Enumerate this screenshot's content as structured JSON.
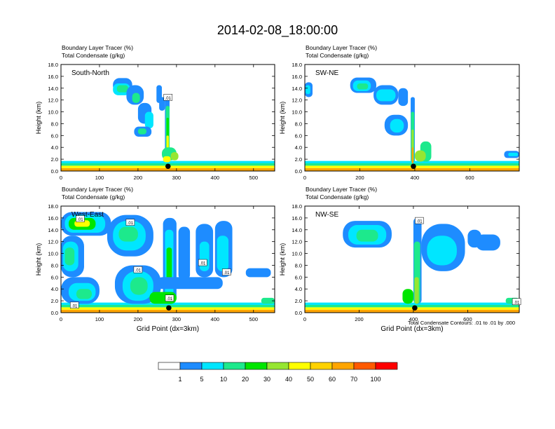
{
  "figure": {
    "title": "2014-02-08_18:00:00",
    "note": "Total Condensate Contours: .01 to .01 by .000"
  },
  "colorbar": {
    "colors": [
      "#ffffff",
      "#1e8cff",
      "#00e6ff",
      "#1de98c",
      "#00e600",
      "#96e632",
      "#ffff00",
      "#ffd200",
      "#ffa500",
      "#ff5a00",
      "#ff0000"
    ],
    "labels": [
      "1",
      "5",
      "10",
      "20",
      "30",
      "40",
      "50",
      "60",
      "70",
      "100"
    ]
  },
  "chart_data": [
    {
      "type": "heatmap",
      "panel": "South-North",
      "subtitle_line1": "Boundary Layer Tracer   (%)",
      "subtitle_line2": "Total Condensate   (g/kg)",
      "ylabel": "Height (km)",
      "xlabel": "",
      "xlim": [
        0,
        555
      ],
      "ylim": [
        0,
        18
      ],
      "xticks": [
        "0",
        "100",
        "200",
        "300",
        "400",
        "500"
      ],
      "xtick_values": [
        0,
        100,
        200,
        300,
        400,
        500
      ],
      "yticks": [
        "0.0",
        "2.0",
        "4.0",
        "6.0",
        "8.0",
        "10.0",
        "12.0",
        "14.0",
        "16.0",
        "18.0"
      ],
      "contour_labels": [
        {
          "text": ".01",
          "x": 278,
          "y": 12.4
        }
      ],
      "marker": {
        "x": 278,
        "y": 0.8
      },
      "blobs": [
        {
          "x": [
            0,
            555
          ],
          "y": [
            0,
            0.5
          ],
          "c": 8
        },
        {
          "x": [
            0,
            555
          ],
          "y": [
            0.5,
            0.9
          ],
          "c": 6
        },
        {
          "x": [
            0,
            555
          ],
          "y": [
            0.9,
            1.3
          ],
          "c": 3
        },
        {
          "x": [
            0,
            555
          ],
          "y": [
            1.3,
            1.7
          ],
          "c": 2
        },
        {
          "x": [
            135,
            185
          ],
          "y": [
            13.3,
            15.7
          ],
          "c": 1
        },
        {
          "x": [
            135,
            180
          ],
          "y": [
            12.8,
            14.8
          ],
          "c": 2
        },
        {
          "x": [
            145,
            175
          ],
          "y": [
            13.3,
            14.5
          ],
          "c": 3
        },
        {
          "x": [
            170,
            215
          ],
          "y": [
            11.2,
            14.5
          ],
          "c": 1
        },
        {
          "x": [
            185,
            205
          ],
          "y": [
            11.5,
            13.2
          ],
          "c": 3
        },
        {
          "x": [
            200,
            235
          ],
          "y": [
            8,
            11.5
          ],
          "c": 1
        },
        {
          "x": [
            218,
            240
          ],
          "y": [
            7.2,
            10
          ],
          "c": 2
        },
        {
          "x": [
            255,
            270
          ],
          "y": [
            10.2,
            12.5
          ],
          "c": 1
        },
        {
          "x": [
            248,
            262
          ],
          "y": [
            11.5,
            14.5
          ],
          "c": 1
        },
        {
          "x": [
            270,
            282
          ],
          "y": [
            2,
            12.5
          ],
          "c": 1
        },
        {
          "x": [
            272,
            282
          ],
          "y": [
            2,
            11
          ],
          "c": 3
        },
        {
          "x": [
            274,
            280
          ],
          "y": [
            1.6,
            9
          ],
          "c": 4
        },
        {
          "x": [
            274,
            280
          ],
          "y": [
            1.5,
            6
          ],
          "c": 6
        },
        {
          "x": [
            275,
            279
          ],
          "y": [
            1.5,
            3.5
          ],
          "c": 8
        },
        {
          "x": [
            190,
            235
          ],
          "y": [
            5.8,
            7.5
          ],
          "c": 1
        },
        {
          "x": [
            200,
            222
          ],
          "y": [
            6.2,
            7.2
          ],
          "c": 3
        },
        {
          "x": [
            262,
            300
          ],
          "y": [
            1.8,
            4
          ],
          "c": 3
        },
        {
          "x": [
            285,
            305
          ],
          "y": [
            1.8,
            3.2
          ],
          "c": 5
        },
        {
          "x": [
            265,
            285
          ],
          "y": [
            1.5,
            2.5
          ],
          "c": 6
        }
      ]
    },
    {
      "type": "heatmap",
      "panel": "SW-NE",
      "subtitle_line1": "Boundary Layer Tracer   (%)",
      "subtitle_line2": "Total Condensate   (g/kg)",
      "ylabel": "Height (km)",
      "xlabel": "",
      "xlim": [
        0,
        780
      ],
      "ylim": [
        0,
        18
      ],
      "xticks": [
        "0",
        "200",
        "400",
        "600"
      ],
      "xtick_values": [
        0,
        200,
        400,
        600
      ],
      "yticks": [
        "0.0",
        "2.0",
        "4.0",
        "6.0",
        "8.0",
        "10.0",
        "12.0",
        "14.0",
        "16.0",
        "18.0"
      ],
      "contour_labels": [],
      "marker": {
        "x": 395,
        "y": 0.8
      },
      "blobs": [
        {
          "x": [
            0,
            780
          ],
          "y": [
            0,
            0.5
          ],
          "c": 8
        },
        {
          "x": [
            0,
            780
          ],
          "y": [
            0.5,
            0.9
          ],
          "c": 6
        },
        {
          "x": [
            0,
            780
          ],
          "y": [
            0.9,
            1.3
          ],
          "c": 3
        },
        {
          "x": [
            0,
            780
          ],
          "y": [
            1.3,
            1.7
          ],
          "c": 2
        },
        {
          "x": [
            0,
            28
          ],
          "y": [
            12.5,
            15
          ],
          "c": 1
        },
        {
          "x": [
            3,
            20
          ],
          "y": [
            13,
            14.5
          ],
          "c": 2
        },
        {
          "x": [
            165,
            260
          ],
          "y": [
            13.2,
            15.8
          ],
          "c": 1
        },
        {
          "x": [
            175,
            240
          ],
          "y": [
            13.5,
            15.3
          ],
          "c": 2
        },
        {
          "x": [
            190,
            230
          ],
          "y": [
            13.8,
            14.8
          ],
          "c": 3
        },
        {
          "x": [
            250,
            340
          ],
          "y": [
            11.2,
            14.5
          ],
          "c": 1
        },
        {
          "x": [
            260,
            330
          ],
          "y": [
            11.8,
            13.8
          ],
          "c": 2
        },
        {
          "x": [
            340,
            375
          ],
          "y": [
            11,
            14
          ],
          "c": 1
        },
        {
          "x": [
            290,
            375
          ],
          "y": [
            6,
            9.5
          ],
          "c": 1
        },
        {
          "x": [
            310,
            360
          ],
          "y": [
            6.5,
            8.8
          ],
          "c": 2
        },
        {
          "x": [
            385,
            400
          ],
          "y": [
            1.5,
            12.5
          ],
          "c": 1
        },
        {
          "x": [
            386,
            398
          ],
          "y": [
            1.5,
            10
          ],
          "c": 3
        },
        {
          "x": [
            388,
            396
          ],
          "y": [
            1.5,
            7
          ],
          "c": 5
        },
        {
          "x": [
            389,
            395
          ],
          "y": [
            1.3,
            4
          ],
          "c": 8
        },
        {
          "x": [
            420,
            460
          ],
          "y": [
            1.6,
            5
          ],
          "c": 3
        },
        {
          "x": [
            400,
            440
          ],
          "y": [
            1.6,
            3.5
          ],
          "c": 5
        },
        {
          "x": [
            725,
            780
          ],
          "y": [
            2.2,
            3.4
          ],
          "c": 1
        },
        {
          "x": [
            740,
            775
          ],
          "y": [
            2.5,
            3.1
          ],
          "c": 2
        }
      ]
    },
    {
      "type": "heatmap",
      "panel": "West-East",
      "subtitle_line1": "Boundary Layer Tracer   (%)",
      "subtitle_line2": "Total Condensate   (g/kg)",
      "ylabel": "Height (km)",
      "xlabel": "Grid Point (dx=3km)",
      "xlim": [
        0,
        555
      ],
      "ylim": [
        0,
        18
      ],
      "xticks": [
        "0",
        "100",
        "200",
        "300",
        "400",
        "500"
      ],
      "xtick_values": [
        0,
        100,
        200,
        300,
        400,
        500
      ],
      "yticks": [
        "0.0",
        "2.0",
        "4.0",
        "6.0",
        "8.0",
        "10.0",
        "12.0",
        "14.0",
        "16.0",
        "18.0"
      ],
      "contour_labels": [
        {
          "text": ".01",
          "x": 50,
          "y": 15.8
        },
        {
          "text": ".01",
          "x": 180,
          "y": 15.2
        },
        {
          "text": ".01",
          "x": 200,
          "y": 7.2
        },
        {
          "text": ".01",
          "x": 368,
          "y": 8.4
        },
        {
          "text": ".01",
          "x": 430,
          "y": 6.8
        },
        {
          "text": ".01",
          "x": 282,
          "y": 2.4
        },
        {
          "text": ".01",
          "x": 35,
          "y": 1.2
        }
      ],
      "marker": {
        "x": 280,
        "y": 0.8
      },
      "blobs": [
        {
          "x": [
            0,
            555
          ],
          "y": [
            0,
            0.5
          ],
          "c": 8
        },
        {
          "x": [
            0,
            555
          ],
          "y": [
            0.5,
            0.9
          ],
          "c": 6
        },
        {
          "x": [
            0,
            555
          ],
          "y": [
            0.9,
            1.3
          ],
          "c": 3
        },
        {
          "x": [
            0,
            555
          ],
          "y": [
            1.3,
            1.7
          ],
          "c": 2
        },
        {
          "x": [
            0,
            130
          ],
          "y": [
            13,
            17
          ],
          "c": 1
        },
        {
          "x": [
            10,
            115
          ],
          "y": [
            13.5,
            16.5
          ],
          "c": 2
        },
        {
          "x": [
            20,
            90
          ],
          "y": [
            14,
            16
          ],
          "c": 4
        },
        {
          "x": [
            35,
            75
          ],
          "y": [
            14.5,
            15.6
          ],
          "c": 6
        },
        {
          "x": [
            0,
            60
          ],
          "y": [
            6,
            13
          ],
          "c": 1
        },
        {
          "x": [
            5,
            45
          ],
          "y": [
            7,
            12
          ],
          "c": 2
        },
        {
          "x": [
            10,
            35
          ],
          "y": [
            8,
            11
          ],
          "c": 3
        },
        {
          "x": [
            120,
            240
          ],
          "y": [
            9.5,
            16.5
          ],
          "c": 1
        },
        {
          "x": [
            135,
            220
          ],
          "y": [
            10.5,
            15.5
          ],
          "c": 2
        },
        {
          "x": [
            150,
            200
          ],
          "y": [
            12,
            14.5
          ],
          "c": 3
        },
        {
          "x": [
            0,
            100
          ],
          "y": [
            1.5,
            6
          ],
          "c": 1
        },
        {
          "x": [
            20,
            90
          ],
          "y": [
            2,
            5
          ],
          "c": 2
        },
        {
          "x": [
            40,
            80
          ],
          "y": [
            2.3,
            4
          ],
          "c": 3
        },
        {
          "x": [
            140,
            260
          ],
          "y": [
            1.5,
            8
          ],
          "c": 1
        },
        {
          "x": [
            160,
            240
          ],
          "y": [
            2,
            7
          ],
          "c": 2
        },
        {
          "x": [
            180,
            225
          ],
          "y": [
            3,
            6
          ],
          "c": 3
        },
        {
          "x": [
            265,
            300
          ],
          "y": [
            1.5,
            16
          ],
          "c": 1
        },
        {
          "x": [
            270,
            292
          ],
          "y": [
            3,
            14
          ],
          "c": 2
        },
        {
          "x": [
            274,
            288
          ],
          "y": [
            5,
            11
          ],
          "c": 4
        },
        {
          "x": [
            305,
            335
          ],
          "y": [
            5.5,
            14.5
          ],
          "c": 1
        },
        {
          "x": [
            350,
            395
          ],
          "y": [
            6,
            15
          ],
          "c": 1
        },
        {
          "x": [
            360,
            385
          ],
          "y": [
            7,
            12
          ],
          "c": 2
        },
        {
          "x": [
            400,
            445
          ],
          "y": [
            6,
            15.5
          ],
          "c": 1
        },
        {
          "x": [
            405,
            435
          ],
          "y": [
            7,
            13
          ],
          "c": 2
        },
        {
          "x": [
            250,
            420
          ],
          "y": [
            4,
            6
          ],
          "c": 1
        },
        {
          "x": [
            480,
            545
          ],
          "y": [
            6,
            7.5
          ],
          "c": 1
        },
        {
          "x": [
            230,
            300
          ],
          "y": [
            1.5,
            3.5
          ],
          "c": 4
        },
        {
          "x": [
            520,
            555
          ],
          "y": [
            1.5,
            2.5
          ],
          "c": 3
        }
      ]
    },
    {
      "type": "heatmap",
      "panel": "NW-SE",
      "subtitle_line1": "Boundary Layer Tracer   (%)",
      "subtitle_line2": "Total Condensate   (g/kg)",
      "ylabel": "Height (km)",
      "xlabel": "Grid Point (dx=3km)",
      "xlim": [
        0,
        790
      ],
      "ylim": [
        0,
        18
      ],
      "xticks": [
        "0",
        "200",
        "400",
        "600"
      ],
      "xtick_values": [
        0,
        200,
        400,
        600
      ],
      "yticks": [
        "0.0",
        "2.0",
        "4.0",
        "6.0",
        "8.0",
        "10.0",
        "12.0",
        "14.0",
        "16.0",
        "18.0"
      ],
      "contour_labels": [
        {
          "text": ".01",
          "x": 422,
          "y": 15.5
        },
        {
          "text": ".01",
          "x": 780,
          "y": 1.8
        }
      ],
      "marker": {
        "x": 405,
        "y": 0.8
      },
      "blobs": [
        {
          "x": [
            0,
            790
          ],
          "y": [
            0,
            0.5
          ],
          "c": 8
        },
        {
          "x": [
            0,
            790
          ],
          "y": [
            0.5,
            0.9
          ],
          "c": 6
        },
        {
          "x": [
            0,
            790
          ],
          "y": [
            0.9,
            1.3
          ],
          "c": 3
        },
        {
          "x": [
            0,
            790
          ],
          "y": [
            1.3,
            1.7
          ],
          "c": 2
        },
        {
          "x": [
            140,
            320
          ],
          "y": [
            11,
            15.5
          ],
          "c": 1
        },
        {
          "x": [
            160,
            300
          ],
          "y": [
            11.5,
            14.8
          ],
          "c": 2
        },
        {
          "x": [
            190,
            270
          ],
          "y": [
            12,
            14
          ],
          "c": 3
        },
        {
          "x": [
            400,
            430
          ],
          "y": [
            1.5,
            16
          ],
          "c": 1
        },
        {
          "x": [
            402,
            425
          ],
          "y": [
            1.5,
            12
          ],
          "c": 3
        },
        {
          "x": [
            404,
            420
          ],
          "y": [
            1.5,
            6
          ],
          "c": 5
        },
        {
          "x": [
            430,
            590
          ],
          "y": [
            7,
            15
          ],
          "c": 1
        },
        {
          "x": [
            450,
            560
          ],
          "y": [
            8,
            13
          ],
          "c": 2
        },
        {
          "x": [
            630,
            720
          ],
          "y": [
            10.5,
            13.2
          ],
          "c": 1
        },
        {
          "x": [
            600,
            650
          ],
          "y": [
            11,
            14
          ],
          "c": 1
        },
        {
          "x": [
            360,
            400
          ],
          "y": [
            1.5,
            4
          ],
          "c": 4
        },
        {
          "x": [
            740,
            790
          ],
          "y": [
            1.5,
            2.5
          ],
          "c": 3
        }
      ]
    }
  ]
}
